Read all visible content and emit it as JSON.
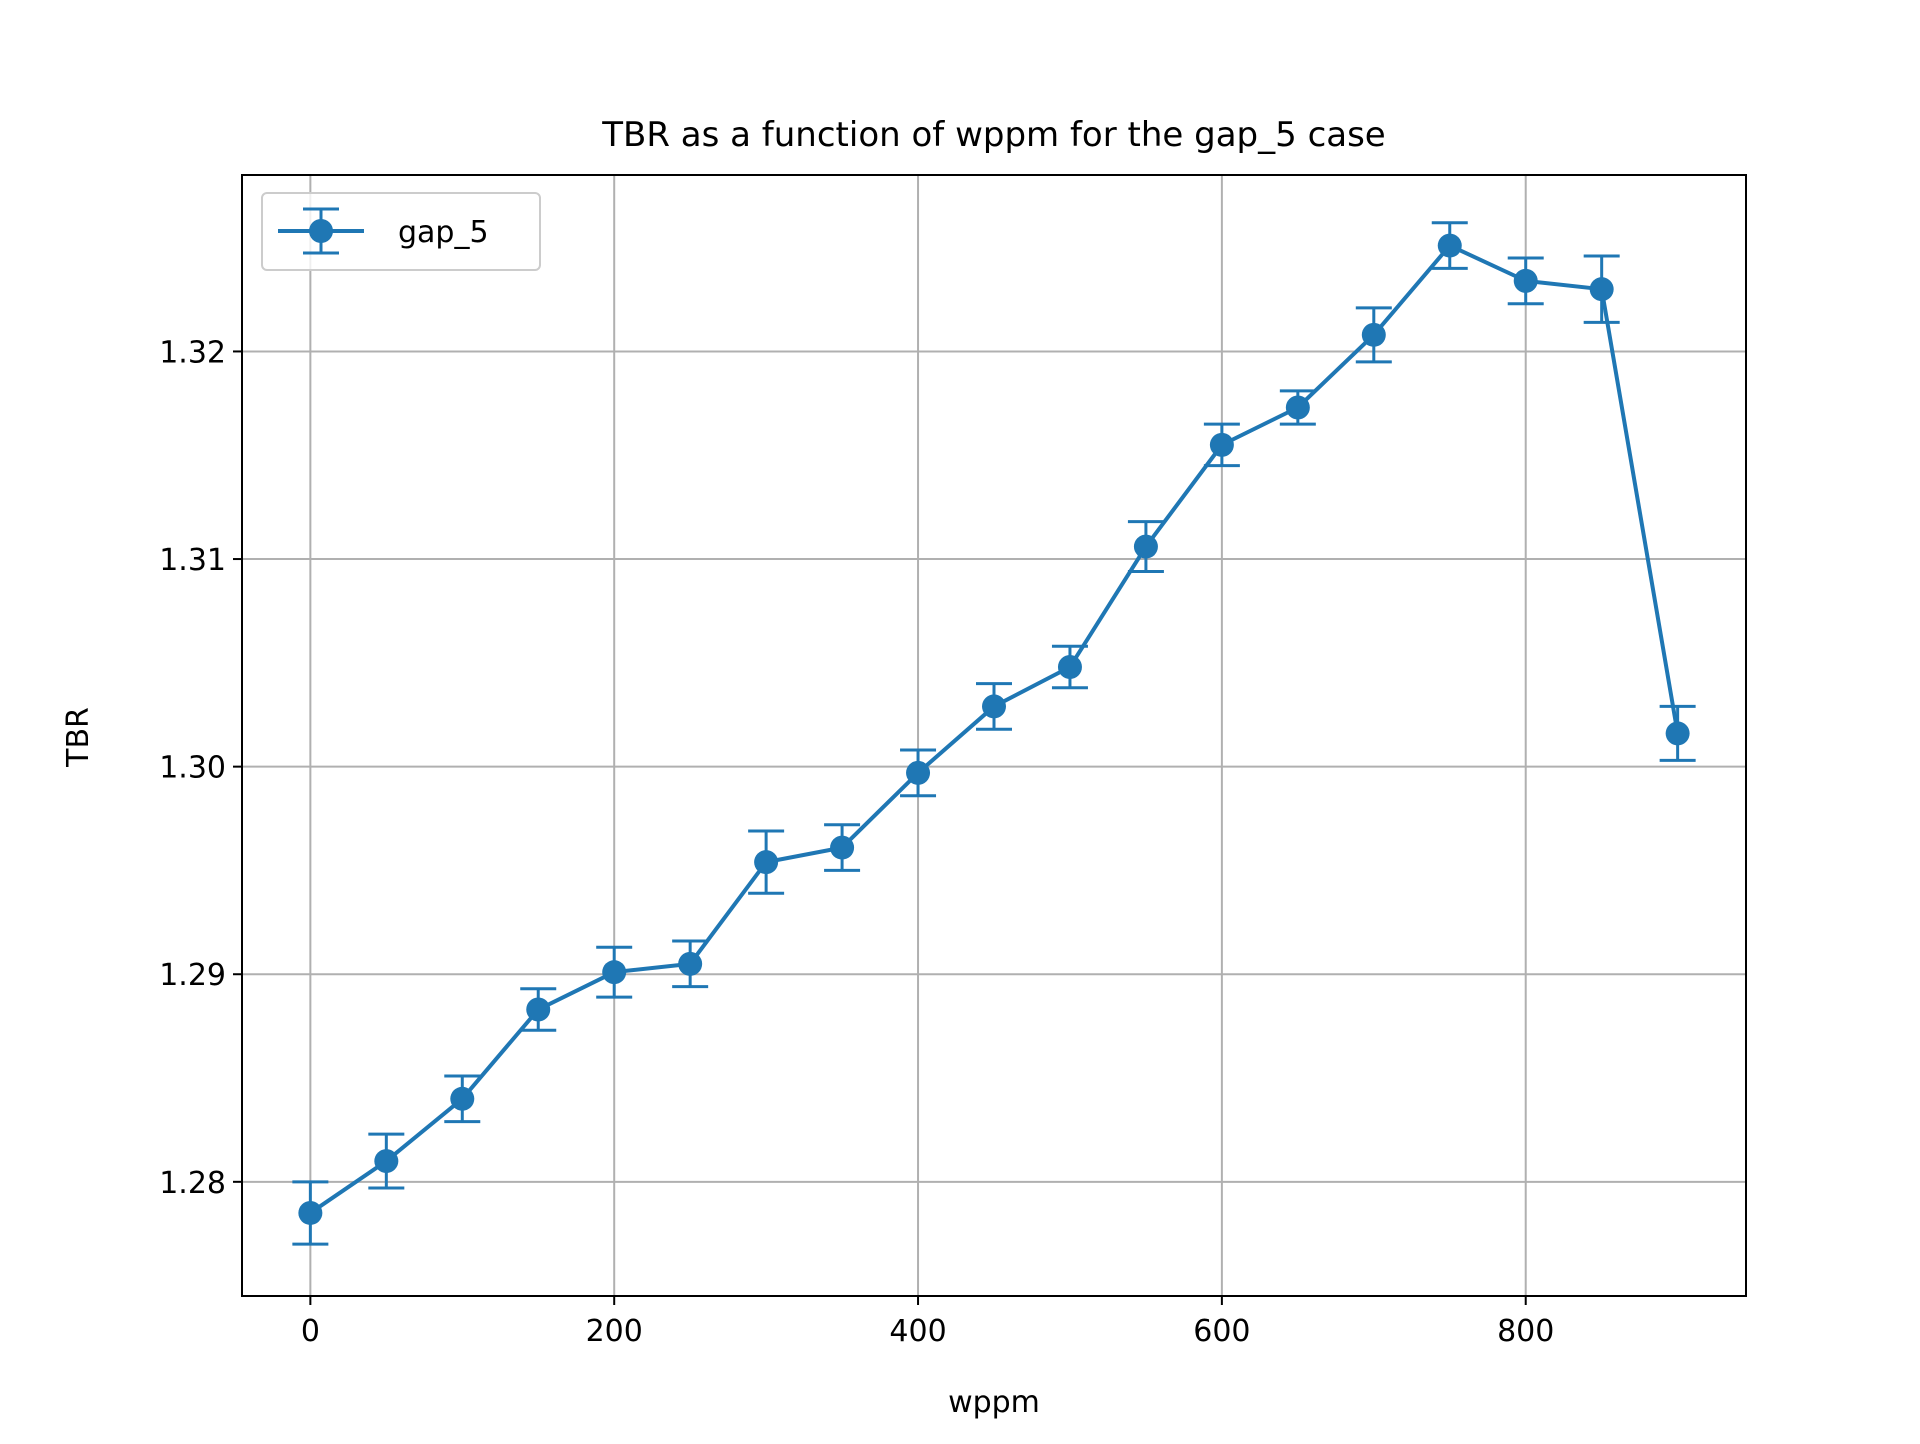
{
  "chart_data": {
    "type": "line",
    "title": "TBR as a function of wppm for the gap_5 case",
    "xlabel": "wppm",
    "ylabel": "TBR",
    "xlim": [
      -45,
      945
    ],
    "ylim": [
      1.2745,
      1.3285
    ],
    "x_ticks": [
      0,
      200,
      400,
      600,
      800
    ],
    "y_ticks": [
      1.28,
      1.29,
      1.3,
      1.31,
      1.32
    ],
    "y_tick_labels": [
      "1.28",
      "1.29",
      "1.30",
      "1.31",
      "1.32"
    ],
    "grid": true,
    "legend_position": "upper-left",
    "series": [
      {
        "name": "gap_5",
        "color": "#1f77b4",
        "x": [
          0,
          50,
          100,
          150,
          200,
          250,
          300,
          350,
          400,
          450,
          500,
          550,
          600,
          650,
          700,
          750,
          800,
          850,
          900
        ],
        "y": [
          1.2785,
          1.281,
          1.284,
          1.2883,
          1.2901,
          1.2905,
          1.2954,
          1.2961,
          1.2997,
          1.3029,
          1.3048,
          1.3106,
          1.3155,
          1.3173,
          1.3208,
          1.3251,
          1.3234,
          1.323,
          1.3016
        ],
        "yerr": [
          0.0015,
          0.0013,
          0.0011,
          0.001,
          0.0012,
          0.0011,
          0.0015,
          0.0011,
          0.0011,
          0.0011,
          0.001,
          0.0012,
          0.001,
          0.0008,
          0.0013,
          0.0011,
          0.0011,
          0.0016,
          0.0013
        ]
      }
    ]
  }
}
